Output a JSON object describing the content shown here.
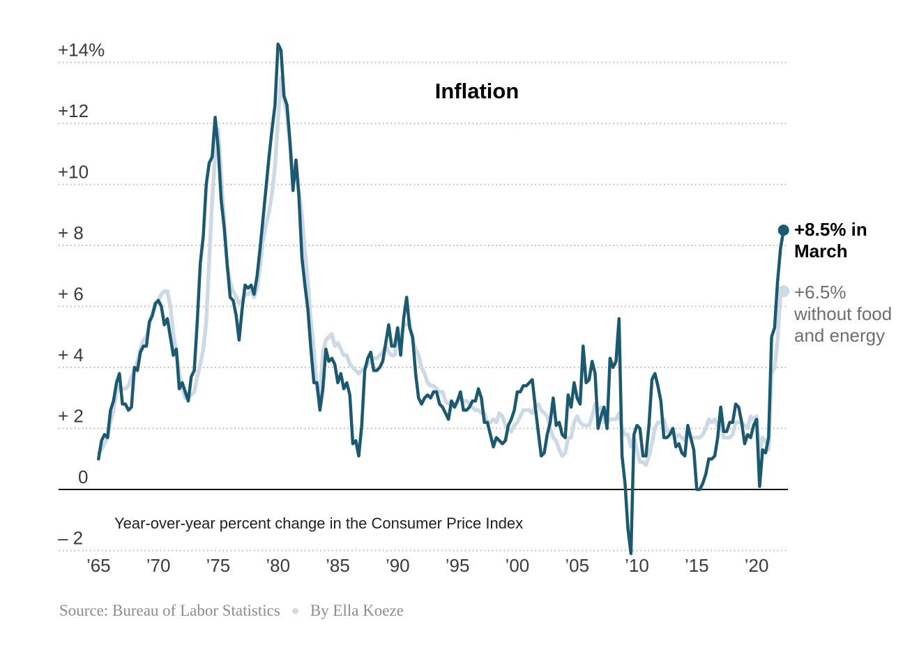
{
  "title": "Inflation",
  "note": "Year-over-year percent change in the Consumer Price Index",
  "annotations": {
    "headline": {
      "lines": [
        "+8.5% in",
        "March"
      ],
      "value": "+8.5%",
      "month": "March"
    },
    "core": {
      "lines": [
        "+6.5%",
        "without food",
        "and energy"
      ],
      "value": "+6.5%"
    }
  },
  "source": {
    "text": "Source: Bureau of Labor Statistics",
    "byline": "By Ella Koeze"
  },
  "colors": {
    "headline_line": "#1a5970",
    "core_line": "#cdd9e5",
    "grid": "#b5b5b5",
    "zero_axis": "#111111",
    "tick_text": "#3a3a3a",
    "core_label_text": "#6e6e6e"
  },
  "chart_data": {
    "type": "line",
    "title": "Inflation",
    "subtitle": "Year-over-year percent change in the Consumer Price Index",
    "x_unit": "year",
    "x_start": 1965.0,
    "x_step": 0.25,
    "xlim": [
      1965.0,
      2022.25
    ],
    "ylim": [
      -2.1,
      14.6
    ],
    "grid": "horizontal dotted, solid line at zero",
    "legend_position": "end-of-line labels at right",
    "x_ticks": [
      {
        "year": 1965,
        "label": "’65"
      },
      {
        "year": 1970,
        "label": "’70"
      },
      {
        "year": 1975,
        "label": "’75"
      },
      {
        "year": 1980,
        "label": "’80"
      },
      {
        "year": 1985,
        "label": "’85"
      },
      {
        "year": 1990,
        "label": "’90"
      },
      {
        "year": 1995,
        "label": "’95"
      },
      {
        "year": 2000,
        "label": "’00"
      },
      {
        "year": 2005,
        "label": "’05"
      },
      {
        "year": 2010,
        "label": "’10"
      },
      {
        "year": 2015,
        "label": "’15"
      },
      {
        "year": 2020,
        "label": "’20"
      }
    ],
    "y_ticks": [
      {
        "value": 14,
        "label": "+14%"
      },
      {
        "value": 12,
        "label": "+12"
      },
      {
        "value": 10,
        "label": "+10"
      },
      {
        "value": 8,
        "label": "+ 8"
      },
      {
        "value": 6,
        "label": "+ 6"
      },
      {
        "value": 4,
        "label": "+ 4"
      },
      {
        "value": 2,
        "label": "+ 2"
      },
      {
        "value": 0,
        "label": "0"
      },
      {
        "value": -2,
        "label": "– 2"
      }
    ],
    "series": [
      {
        "id": "all-items",
        "name": "Consumer Price Index, all items",
        "color": "#1a5970",
        "stroke_width": 4.5,
        "dot_radius": 8,
        "end_label": "+8.5% in March",
        "end_value": 8.5,
        "values": [
          1.0,
          1.6,
          1.8,
          1.7,
          2.6,
          2.9,
          3.5,
          3.8,
          2.8,
          2.8,
          2.6,
          2.7,
          4.0,
          3.9,
          4.5,
          4.7,
          4.7,
          5.5,
          5.7,
          6.1,
          6.2,
          6.0,
          5.4,
          5.6,
          5.0,
          4.4,
          4.6,
          3.3,
          3.5,
          3.2,
          2.9,
          3.7,
          3.9,
          5.5,
          7.4,
          8.3,
          10.0,
          10.7,
          10.9,
          12.2,
          11.2,
          9.5,
          8.6,
          7.4,
          6.3,
          6.2,
          5.7,
          4.9,
          5.9,
          6.7,
          6.6,
          6.7,
          6.4,
          7.0,
          7.9,
          8.9,
          9.9,
          10.9,
          11.8,
          12.6,
          14.6,
          14.4,
          12.9,
          12.6,
          11.4,
          9.8,
          10.8,
          9.6,
          7.6,
          6.7,
          5.9,
          4.6,
          3.5,
          3.5,
          2.6,
          3.3,
          4.6,
          4.2,
          4.3,
          4.1,
          3.5,
          3.8,
          3.3,
          3.5,
          3.1,
          1.5,
          1.6,
          1.1,
          2.1,
          3.9,
          4.3,
          4.5,
          3.9,
          3.9,
          4.0,
          4.2,
          4.8,
          5.4,
          4.7,
          4.7,
          5.3,
          4.4,
          5.6,
          6.3,
          5.3,
          5.0,
          3.8,
          3.0,
          2.8,
          3.0,
          3.1,
          3.0,
          3.2,
          3.2,
          2.8,
          2.7,
          2.5,
          2.3,
          2.9,
          2.7,
          2.9,
          3.2,
          2.6,
          2.6,
          2.7,
          2.9,
          2.9,
          3.3,
          3.0,
          2.2,
          2.2,
          1.8,
          1.4,
          1.7,
          1.6,
          1.5,
          1.6,
          2.1,
          2.3,
          2.6,
          3.2,
          3.2,
          3.4,
          3.4,
          3.5,
          3.6,
          2.7,
          1.9,
          1.1,
          1.2,
          1.8,
          2.2,
          3.0,
          2.1,
          2.2,
          1.8,
          1.7,
          3.1,
          2.7,
          3.5,
          3.0,
          2.8,
          4.7,
          3.5,
          3.6,
          4.2,
          3.8,
          2.0,
          2.4,
          2.7,
          2.0,
          4.3,
          4.0,
          4.2,
          5.6,
          1.1,
          0.2,
          -1.3,
          -2.1,
          1.8,
          2.1,
          2.0,
          1.1,
          1.1,
          2.1,
          3.6,
          3.8,
          3.4,
          2.9,
          1.7,
          1.7,
          1.8,
          2.0,
          1.4,
          1.5,
          1.2,
          1.1,
          2.1,
          1.7,
          1.3,
          0.0,
          0.0,
          0.2,
          0.5,
          1.0,
          1.0,
          1.1,
          1.7,
          2.7,
          1.9,
          1.9,
          2.2,
          2.2,
          2.8,
          2.7,
          2.2,
          1.5,
          1.8,
          1.7,
          2.1,
          2.3,
          0.1,
          1.3,
          1.2,
          1.7,
          5.0,
          5.3,
          6.8,
          7.9,
          8.5
        ]
      },
      {
        "id": "core",
        "name": "Consumer Price Index, without food and energy",
        "color": "#cdd9e5",
        "stroke_width": 5.5,
        "dot_radius": 8.5,
        "end_label": "+6.5% without food and energy",
        "end_value": 6.5,
        "values": [
          1.2,
          1.3,
          1.5,
          1.7,
          2.2,
          2.6,
          3.2,
          3.4,
          3.3,
          3.3,
          3.4,
          3.7,
          3.9,
          4.2,
          4.6,
          4.9,
          5.0,
          5.4,
          5.8,
          6.0,
          6.2,
          6.4,
          6.5,
          6.5,
          6.0,
          5.1,
          4.5,
          3.8,
          3.3,
          3.0,
          3.0,
          3.1,
          3.2,
          3.7,
          4.1,
          4.6,
          5.5,
          7.5,
          9.5,
          11.0,
          11.8,
          10.3,
          8.8,
          7.3,
          6.8,
          6.5,
          6.3,
          6.1,
          6.2,
          6.4,
          6.4,
          6.5,
          6.3,
          6.6,
          7.3,
          8.2,
          8.7,
          9.1,
          9.7,
          10.6,
          12.1,
          13.5,
          12.8,
          12.3,
          11.3,
          10.3,
          10.7,
          9.8,
          9.0,
          7.8,
          6.8,
          5.5,
          4.6,
          3.3,
          3.0,
          4.5,
          4.9,
          5.0,
          5.1,
          4.7,
          4.8,
          4.6,
          4.4,
          4.4,
          4.1,
          4.0,
          3.9,
          3.8,
          3.9,
          4.0,
          4.1,
          4.2,
          4.3,
          4.3,
          4.4,
          4.5,
          4.7,
          4.5,
          4.4,
          4.4,
          5.1,
          5.0,
          5.4,
          5.4,
          5.5,
          4.9,
          4.6,
          4.4,
          4.0,
          3.8,
          3.5,
          3.4,
          3.4,
          3.3,
          3.2,
          3.2,
          2.9,
          2.8,
          2.9,
          2.7,
          2.9,
          3.0,
          2.9,
          2.9,
          2.8,
          2.7,
          2.6,
          2.6,
          2.5,
          2.5,
          2.2,
          2.2,
          2.3,
          2.2,
          2.5,
          2.4,
          2.1,
          2.0,
          1.9,
          2.1,
          2.2,
          2.4,
          2.6,
          2.6,
          2.6,
          2.5,
          2.7,
          2.8,
          2.6,
          2.5,
          2.4,
          2.0,
          1.7,
          1.6,
          1.3,
          1.1,
          1.2,
          1.7,
          1.7,
          2.2,
          2.4,
          2.2,
          2.1,
          2.1,
          2.1,
          2.4,
          2.8,
          2.6,
          2.7,
          2.2,
          2.2,
          2.3,
          2.3,
          2.3,
          2.5,
          2.0,
          1.8,
          1.8,
          1.4,
          1.7,
          1.3,
          0.9,
          0.9,
          0.8,
          1.1,
          1.5,
          2.0,
          2.2,
          2.2,
          2.3,
          1.9,
          1.9,
          2.0,
          1.7,
          1.8,
          1.7,
          1.6,
          2.0,
          1.7,
          1.7,
          1.7,
          1.7,
          1.8,
          2.0,
          2.3,
          2.2,
          2.3,
          2.1,
          2.2,
          1.7,
          1.7,
          1.7,
          1.8,
          2.2,
          2.2,
          2.2,
          2.1,
          2.0,
          2.4,
          2.3,
          2.4,
          1.2,
          1.7,
          1.6,
          1.3,
          3.8,
          4.0,
          4.9,
          6.4,
          6.5
        ]
      }
    ]
  }
}
